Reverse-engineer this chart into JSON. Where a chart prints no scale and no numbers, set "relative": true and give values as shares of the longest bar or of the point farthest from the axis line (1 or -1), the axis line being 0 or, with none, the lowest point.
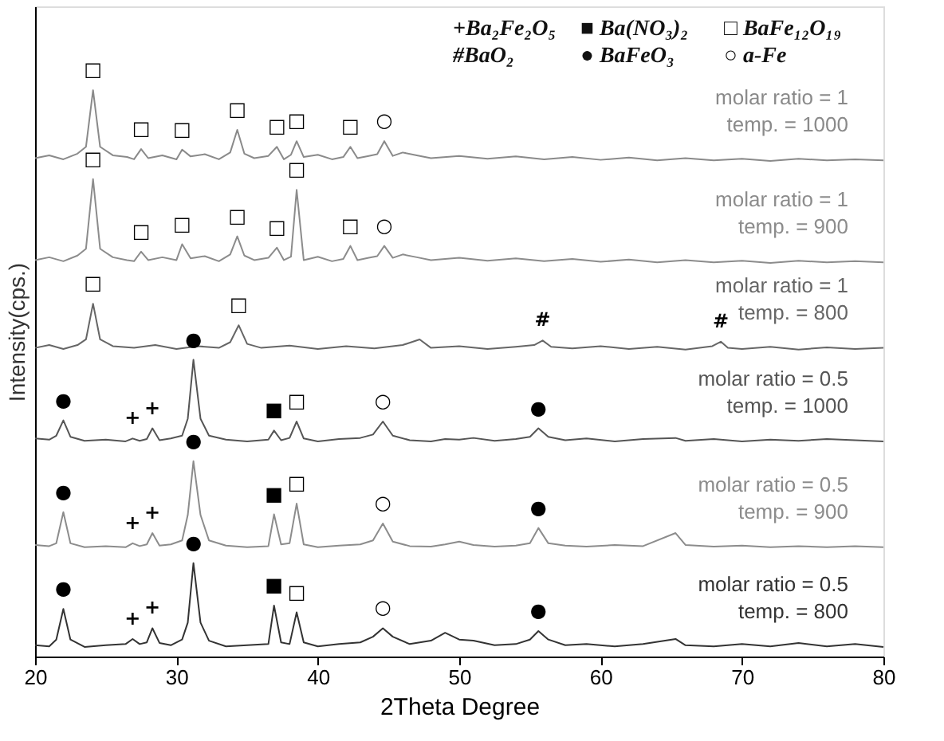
{
  "chart_data": {
    "type": "line",
    "relative": true,
    "xlabel": "2Theta Degree",
    "ylabel": "Intensity(cps.)",
    "xlim": [
      20,
      80
    ],
    "xticks": [
      20,
      30,
      40,
      50,
      60,
      70,
      80
    ],
    "grid": false,
    "series": [
      {
        "name": "molar ratio = 1\ntemp. = 1000",
        "color": "#8a8a8a",
        "x": [
          20,
          21,
          22,
          23,
          23.6,
          24.1,
          24.6,
          25.5,
          26.5,
          27,
          27.5,
          28,
          29,
          30,
          30.4,
          31,
          32,
          33,
          33.8,
          34.3,
          34.8,
          35.5,
          36.5,
          37.1,
          37.6,
          38.1,
          38.5,
          39,
          40,
          41,
          41.8,
          42.3,
          42.8,
          43.6,
          44.2,
          44.7,
          45.3,
          46,
          47,
          48,
          50,
          52,
          54,
          56,
          58,
          60,
          62,
          64,
          66,
          68,
          70,
          72,
          74,
          76,
          78,
          80
        ],
        "values": [
          0.88,
          0.885,
          0.878,
          0.888,
          0.9,
          1.0,
          0.9,
          0.885,
          0.882,
          0.878,
          0.896,
          0.88,
          0.885,
          0.878,
          0.895,
          0.883,
          0.887,
          0.878,
          0.89,
          0.93,
          0.888,
          0.88,
          0.884,
          0.9,
          0.878,
          0.886,
          0.91,
          0.882,
          0.886,
          0.878,
          0.882,
          0.9,
          0.88,
          0.884,
          0.887,
          0.91,
          0.884,
          0.89,
          0.885,
          0.88,
          0.884,
          0.879,
          0.883,
          0.878,
          0.882,
          0.877,
          0.881,
          0.876,
          0.88,
          0.876,
          0.879,
          0.875,
          0.879,
          0.876,
          0.878,
          0.876
        ]
      },
      {
        "name": "molar ratio = 1\ntemp. = 900",
        "color": "#8c8c8c",
        "x": [
          20,
          21,
          22,
          23,
          23.6,
          24.1,
          24.6,
          25.5,
          26.5,
          27,
          27.5,
          28,
          29,
          30,
          30.4,
          31,
          32,
          33,
          33.8,
          34.3,
          34.8,
          35.5,
          36.5,
          37.1,
          37.6,
          38.1,
          38.5,
          39,
          40,
          41,
          41.8,
          42.3,
          42.8,
          43.6,
          44.2,
          44.7,
          45.3,
          46,
          47,
          48,
          50,
          52,
          54,
          56,
          58,
          60,
          62,
          64,
          66,
          68,
          70,
          72,
          74,
          76,
          78,
          80
        ],
        "values": [
          0.7,
          0.705,
          0.698,
          0.708,
          0.72,
          0.843,
          0.72,
          0.705,
          0.7,
          0.698,
          0.715,
          0.7,
          0.705,
          0.7,
          0.728,
          0.703,
          0.707,
          0.698,
          0.71,
          0.742,
          0.708,
          0.7,
          0.704,
          0.722,
          0.7,
          0.706,
          0.824,
          0.7,
          0.706,
          0.698,
          0.702,
          0.725,
          0.7,
          0.704,
          0.707,
          0.725,
          0.704,
          0.71,
          0.705,
          0.7,
          0.704,
          0.699,
          0.703,
          0.698,
          0.702,
          0.697,
          0.701,
          0.696,
          0.7,
          0.696,
          0.699,
          0.695,
          0.699,
          0.696,
          0.698,
          0.696
        ]
      },
      {
        "name": "molar ratio = 1\ntemp. = 800",
        "color": "#666666",
        "x": [
          20,
          21,
          22,
          23,
          23.6,
          24.1,
          24.6,
          25.5,
          27,
          28.5,
          30,
          31.5,
          33,
          33.8,
          34.4,
          35,
          36,
          38,
          40,
          42,
          44,
          46,
          47.2,
          48,
          50,
          52,
          54,
          55.3,
          55.9,
          56.5,
          58,
          60,
          62,
          64,
          66,
          67.9,
          68.5,
          69,
          70,
          72,
          74,
          76,
          78,
          80
        ],
        "values": [
          0.545,
          0.55,
          0.543,
          0.55,
          0.56,
          0.623,
          0.56,
          0.548,
          0.545,
          0.55,
          0.543,
          0.548,
          0.545,
          0.555,
          0.585,
          0.552,
          0.545,
          0.549,
          0.543,
          0.548,
          0.544,
          0.55,
          0.56,
          0.545,
          0.548,
          0.543,
          0.547,
          0.55,
          0.558,
          0.547,
          0.544,
          0.548,
          0.543,
          0.547,
          0.542,
          0.548,
          0.556,
          0.545,
          0.543,
          0.547,
          0.542,
          0.546,
          0.543,
          0.545
        ]
      },
      {
        "name": "molar ratio = 0.5\ntemp. = 1000",
        "color": "#555555",
        "x": [
          20,
          21,
          21.5,
          22,
          22.5,
          23.5,
          25,
          26.4,
          26.9,
          27.4,
          27.9,
          28.3,
          28.8,
          29.6,
          30.4,
          30.8,
          31.2,
          31.7,
          32.3,
          33.5,
          35,
          36.5,
          36.9,
          37.4,
          38,
          38.5,
          39,
          40,
          41.5,
          43,
          43.9,
          44.6,
          45.3,
          46.5,
          48,
          49,
          50,
          51,
          52.5,
          54,
          55,
          55.6,
          56.3,
          57.5,
          59,
          61,
          63,
          65.3,
          66,
          68,
          70,
          72,
          74,
          76,
          78,
          80
        ],
        "values": [
          0.385,
          0.383,
          0.39,
          0.417,
          0.388,
          0.381,
          0.383,
          0.38,
          0.385,
          0.381,
          0.384,
          0.403,
          0.382,
          0.385,
          0.39,
          0.42,
          0.524,
          0.42,
          0.39,
          0.383,
          0.38,
          0.383,
          0.399,
          0.382,
          0.386,
          0.415,
          0.385,
          0.38,
          0.384,
          0.386,
          0.392,
          0.415,
          0.39,
          0.382,
          0.38,
          0.384,
          0.383,
          0.386,
          0.381,
          0.384,
          0.388,
          0.403,
          0.388,
          0.382,
          0.385,
          0.38,
          0.384,
          0.386,
          0.381,
          0.384,
          0.38,
          0.383,
          0.381,
          0.384,
          0.382,
          0.38
        ]
      },
      {
        "name": "molar ratio = 0.5\ntemp. = 900",
        "color": "#8c8c8c",
        "x": [
          20,
          21,
          21.5,
          22,
          22.5,
          23.5,
          25,
          26.4,
          26.9,
          27.4,
          27.9,
          28.3,
          28.8,
          29.6,
          30.4,
          30.8,
          31.2,
          31.7,
          32.3,
          33.5,
          35,
          36.5,
          36.9,
          37.4,
          38,
          38.5,
          39,
          40,
          41.5,
          43,
          43.9,
          44.6,
          45.3,
          46.5,
          48,
          49,
          50,
          51,
          52.5,
          54,
          55,
          55.6,
          56.3,
          57.5,
          59,
          61,
          63,
          65.3,
          66,
          68,
          70,
          72,
          74,
          76,
          78,
          80
        ],
        "values": [
          0.197,
          0.195,
          0.2,
          0.255,
          0.2,
          0.193,
          0.195,
          0.193,
          0.2,
          0.195,
          0.198,
          0.218,
          0.196,
          0.198,
          0.205,
          0.25,
          0.345,
          0.25,
          0.205,
          0.196,
          0.193,
          0.195,
          0.251,
          0.198,
          0.2,
          0.27,
          0.198,
          0.193,
          0.196,
          0.198,
          0.205,
          0.235,
          0.203,
          0.195,
          0.194,
          0.198,
          0.203,
          0.197,
          0.194,
          0.196,
          0.2,
          0.227,
          0.2,
          0.196,
          0.194,
          0.197,
          0.195,
          0.218,
          0.197,
          0.194,
          0.196,
          0.193,
          0.195,
          0.193,
          0.195,
          0.193
        ]
      },
      {
        "name": "molar ratio = 0.5\ntemp. = 800",
        "color": "#333333",
        "x": [
          20,
          21,
          21.5,
          22,
          22.5,
          23.5,
          25,
          26.4,
          26.9,
          27.4,
          27.9,
          28.3,
          28.8,
          29.6,
          30.4,
          30.8,
          31.2,
          31.7,
          32.3,
          33.5,
          35,
          36.5,
          36.9,
          37.4,
          38,
          38.5,
          39,
          40,
          41.5,
          43,
          43.9,
          44.6,
          45.3,
          46.5,
          48,
          49,
          50,
          51,
          52.5,
          54,
          55,
          55.6,
          56.3,
          57.5,
          59,
          61,
          63,
          65.3,
          66,
          68,
          70,
          72,
          74,
          76,
          78,
          80
        ],
        "values": [
          0.02,
          0.018,
          0.03,
          0.084,
          0.03,
          0.017,
          0.02,
          0.022,
          0.031,
          0.022,
          0.025,
          0.05,
          0.024,
          0.02,
          0.03,
          0.06,
          0.165,
          0.06,
          0.028,
          0.018,
          0.02,
          0.022,
          0.09,
          0.025,
          0.022,
          0.078,
          0.025,
          0.018,
          0.022,
          0.025,
          0.035,
          0.05,
          0.035,
          0.022,
          0.028,
          0.042,
          0.03,
          0.028,
          0.02,
          0.022,
          0.03,
          0.045,
          0.03,
          0.02,
          0.022,
          0.018,
          0.022,
          0.031,
          0.02,
          0.018,
          0.022,
          0.018,
          0.024,
          0.018,
          0.022,
          0.017
        ]
      }
    ],
    "annotations": [
      "+Ba₂Fe₂O₅",
      "■ Ba(NO₃)₂",
      "□ BaFe₁₂O₁₉",
      "#BaO₂",
      "● BaFeO₃",
      "○ a-Fe",
      {
        "text": "□",
        "x": 24.1,
        "y": 1.0
      },
      {
        "text": "□",
        "x": 27.5,
        "y": 0.896
      },
      {
        "text": "□",
        "x": 30.4,
        "y": 0.895
      },
      {
        "text": "□",
        "x": 34.3,
        "y": 0.93
      },
      {
        "text": "□",
        "x": 37.1,
        "y": 0.9
      },
      {
        "text": "□",
        "x": 38.5,
        "y": 0.91
      },
      {
        "text": "□",
        "x": 42.3,
        "y": 0.9
      },
      {
        "text": "○",
        "x": 44.7,
        "y": 0.91
      },
      {
        "text": "□",
        "x": 24.1,
        "y": 0.843
      },
      {
        "text": "□",
        "x": 27.5,
        "y": 0.715
      },
      {
        "text": "□",
        "x": 30.4,
        "y": 0.728
      },
      {
        "text": "□",
        "x": 34.3,
        "y": 0.742
      },
      {
        "text": "□",
        "x": 37.1,
        "y": 0.722
      },
      {
        "text": "□",
        "x": 38.5,
        "y": 0.824
      },
      {
        "text": "□",
        "x": 42.3,
        "y": 0.725
      },
      {
        "text": "○",
        "x": 44.7,
        "y": 0.725
      },
      {
        "text": "□",
        "x": 24.1,
        "y": 0.623
      },
      {
        "text": "□",
        "x": 34.4,
        "y": 0.585
      },
      {
        "text": "#",
        "x": 55.9,
        "y": 0.558
      },
      {
        "text": "#",
        "x": 68.5,
        "y": 0.556
      },
      {
        "text": "●",
        "x": 22,
        "y": 0.417
      },
      {
        "text": "+",
        "x": 26.9,
        "y": 0.385
      },
      {
        "text": "+",
        "x": 28.3,
        "y": 0.403
      },
      {
        "text": "●",
        "x": 31.2,
        "y": 0.524
      },
      {
        "text": "■",
        "x": 36.9,
        "y": 0.399
      },
      {
        "text": "□",
        "x": 38.5,
        "y": 0.415
      },
      {
        "text": "○",
        "x": 44.6,
        "y": 0.415
      },
      {
        "text": "●",
        "x": 55.6,
        "y": 0.403
      },
      {
        "text": "●",
        "x": 22,
        "y": 0.255
      },
      {
        "text": "+",
        "x": 26.9,
        "y": 0.2
      },
      {
        "text": "+",
        "x": 28.3,
        "y": 0.218
      },
      {
        "text": "●",
        "x": 31.2,
        "y": 0.345
      },
      {
        "text": "■",
        "x": 36.9,
        "y": 0.251
      },
      {
        "text": "□",
        "x": 38.5,
        "y": 0.27
      },
      {
        "text": "○",
        "x": 44.6,
        "y": 0.235
      },
      {
        "text": "●",
        "x": 55.6,
        "y": 0.227
      },
      {
        "text": "●",
        "x": 22,
        "y": 0.084
      },
      {
        "text": "+",
        "x": 26.9,
        "y": 0.031
      },
      {
        "text": "+",
        "x": 28.3,
        "y": 0.05
      },
      {
        "text": "●",
        "x": 31.2,
        "y": 0.165
      },
      {
        "text": "■",
        "x": 36.9,
        "y": 0.09
      },
      {
        "text": "□",
        "x": 38.5,
        "y": 0.078
      },
      {
        "text": "○",
        "x": 44.6,
        "y": 0.05
      },
      {
        "text": "●",
        "x": 55.6,
        "y": 0.045
      }
    ]
  }
}
